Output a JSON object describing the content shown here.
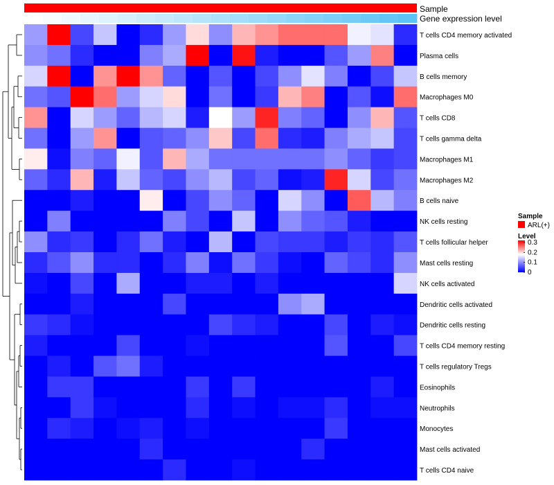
{
  "chart_data": {
    "type": "heatmap",
    "annotations": {
      "sample_label": "Sample",
      "gene_label": "Gene expression level",
      "sample_color": "#ff0000"
    },
    "legend": {
      "sample_title": "Sample",
      "sample_item": "ARL(+)",
      "sample_color": "#ff0000",
      "level_title": "Level",
      "level_ticks": [
        "0.3",
        "0.2",
        "0.1",
        "0"
      ],
      "level_tick_values": [
        0.3,
        0.2,
        0.1,
        0
      ],
      "level_range": [
        0,
        0.32
      ]
    },
    "color_scale": {
      "low": "#0000ff",
      "mid": "#ffffff",
      "high": "#ff0000",
      "mid_value": 0.18,
      "max_value": 0.32
    },
    "gene_expression_bar": {
      "values": [
        0.0,
        0.05,
        0.1,
        0.15,
        0.2,
        0.25,
        0.3,
        0.35,
        0.4,
        0.45,
        0.5,
        0.55,
        0.6,
        0.65,
        0.7,
        0.75,
        0.8,
        0.85,
        0.9,
        0.95,
        1.0
      ]
    },
    "rows": [
      "T cells CD4 memory activated",
      "Plasma cells",
      "B cells memory",
      "Macrophages M0",
      "T cells CD8",
      "T cells gamma delta",
      "Macrophages M1",
      "Macrophages M2",
      "B cells naive",
      "NK cells resting",
      "T cells follicular helper",
      "Mast cells resting",
      "NK cells activated",
      "Dendritic cells activated",
      "Dendritic cells resting",
      "T cells CD4 memory resting",
      "T cells regulatory  Tregs",
      "Eosinophils",
      "Neutrophils",
      "Monocytes",
      "Mast cells activated",
      "T cells CD4 naive"
    ],
    "values": [
      [
        0.11,
        0.32,
        0.05,
        0.14,
        0.0,
        0.03,
        0.11,
        0.2,
        0.1,
        0.22,
        0.24,
        0.26,
        0.26,
        0.26,
        0.17,
        0.16,
        0.03
      ],
      [
        0.1,
        0.08,
        0.03,
        0.0,
        0.0,
        0.09,
        0.12,
        0.32,
        0.0,
        0.31,
        0.02,
        0.0,
        0.0,
        0.06,
        0.11,
        0.25,
        0.0
      ],
      [
        0.15,
        0.32,
        0.0,
        0.24,
        0.32,
        0.24,
        0.07,
        0.0,
        0.06,
        0.0,
        0.05,
        0.1,
        0.16,
        0.09,
        0.0,
        0.05,
        0.14
      ],
      [
        0.08,
        0.06,
        0.32,
        0.26,
        0.11,
        0.15,
        0.2,
        0.0,
        0.08,
        0.0,
        0.04,
        0.22,
        0.25,
        0.0,
        0.06,
        0.01,
        0.26
      ],
      [
        0.24,
        0.0,
        0.15,
        0.11,
        0.07,
        0.13,
        0.15,
        0.02,
        0.18,
        0.11,
        0.3,
        0.09,
        0.07,
        0.0,
        0.1,
        0.22,
        0.06
      ],
      [
        0.08,
        0.0,
        0.11,
        0.24,
        0.0,
        0.06,
        0.07,
        0.1,
        0.21,
        0.05,
        0.26,
        0.03,
        0.02,
        0.09,
        0.12,
        0.14,
        0.05
      ],
      [
        0.19,
        0.01,
        0.09,
        0.07,
        0.17,
        0.06,
        0.22,
        0.12,
        0.08,
        0.08,
        0.08,
        0.08,
        0.08,
        0.1,
        0.07,
        0.04,
        0.05
      ],
      [
        0.07,
        0.03,
        0.22,
        0.02,
        0.14,
        0.07,
        0.05,
        0.1,
        0.13,
        0.05,
        0.07,
        0.01,
        0.02,
        0.3,
        0.15,
        0.05,
        0.08
      ],
      [
        0.0,
        0.0,
        0.02,
        0.0,
        0.0,
        0.19,
        0.0,
        0.05,
        0.1,
        0.07,
        0.0,
        0.15,
        0.1,
        0.0,
        0.27,
        0.13,
        0.09
      ],
      [
        0.0,
        0.09,
        0.0,
        0.0,
        0.0,
        0.0,
        0.09,
        0.05,
        0.0,
        0.14,
        0.0,
        0.1,
        0.07,
        0.06,
        0.02,
        0.0,
        0.0
      ],
      [
        0.1,
        0.03,
        0.04,
        0.0,
        0.03,
        0.08,
        0.02,
        0.0,
        0.13,
        0.0,
        0.05,
        0.04,
        0.04,
        0.02,
        0.04,
        0.03,
        0.06
      ],
      [
        0.03,
        0.06,
        0.1,
        0.03,
        0.03,
        0.0,
        0.03,
        0.09,
        0.01,
        0.08,
        0.04,
        0.01,
        0.0,
        0.07,
        0.05,
        0.03,
        0.1
      ],
      [
        0.01,
        0.0,
        0.05,
        0.0,
        0.12,
        0.0,
        0.0,
        0.02,
        0.02,
        0.0,
        0.02,
        0.0,
        0.0,
        0.0,
        0.0,
        0.0,
        0.15
      ],
      [
        0.0,
        0.0,
        0.02,
        0.0,
        0.0,
        0.0,
        0.05,
        0.0,
        0.0,
        0.0,
        0.0,
        0.1,
        0.12,
        0.0,
        0.0,
        0.0,
        0.0
      ],
      [
        0.04,
        0.03,
        0.01,
        0.0,
        0.0,
        0.0,
        0.0,
        0.0,
        0.05,
        0.03,
        0.02,
        0.0,
        0.0,
        0.05,
        0.0,
        0.02,
        0.01
      ],
      [
        0.02,
        0.0,
        0.0,
        0.0,
        0.05,
        0.0,
        0.0,
        0.01,
        0.0,
        0.0,
        0.0,
        0.0,
        0.0,
        0.06,
        0.0,
        0.0,
        0.05
      ],
      [
        0.0,
        0.02,
        0.0,
        0.06,
        0.08,
        0.02,
        0.0,
        0.0,
        0.0,
        0.0,
        0.0,
        0.0,
        0.0,
        0.0,
        0.0,
        0.0,
        0.0
      ],
      [
        0.0,
        0.04,
        0.04,
        0.0,
        0.0,
        0.0,
        0.0,
        0.04,
        0.0,
        0.04,
        0.0,
        0.0,
        0.0,
        0.0,
        0.0,
        0.02,
        0.0
      ],
      [
        0.0,
        0.0,
        0.04,
        0.01,
        0.0,
        0.0,
        0.0,
        0.03,
        0.0,
        0.01,
        0.0,
        0.01,
        0.01,
        0.03,
        0.0,
        0.01,
        0.01
      ],
      [
        0.0,
        0.03,
        0.02,
        0.0,
        0.01,
        0.02,
        0.0,
        0.01,
        0.0,
        0.0,
        0.0,
        0.0,
        0.0,
        0.04,
        0.0,
        0.0,
        0.0
      ],
      [
        0.0,
        0.0,
        0.0,
        0.0,
        0.0,
        0.03,
        0.0,
        0.0,
        0.0,
        0.0,
        0.0,
        0.0,
        0.03,
        0.0,
        0.0,
        0.0,
        0.0
      ],
      [
        0.0,
        0.0,
        0.0,
        0.0,
        0.0,
        0.0,
        0.03,
        0.0,
        0.0,
        0.01,
        0.0,
        0.0,
        0.0,
        0.0,
        0.0,
        0.0,
        0.0
      ]
    ]
  }
}
